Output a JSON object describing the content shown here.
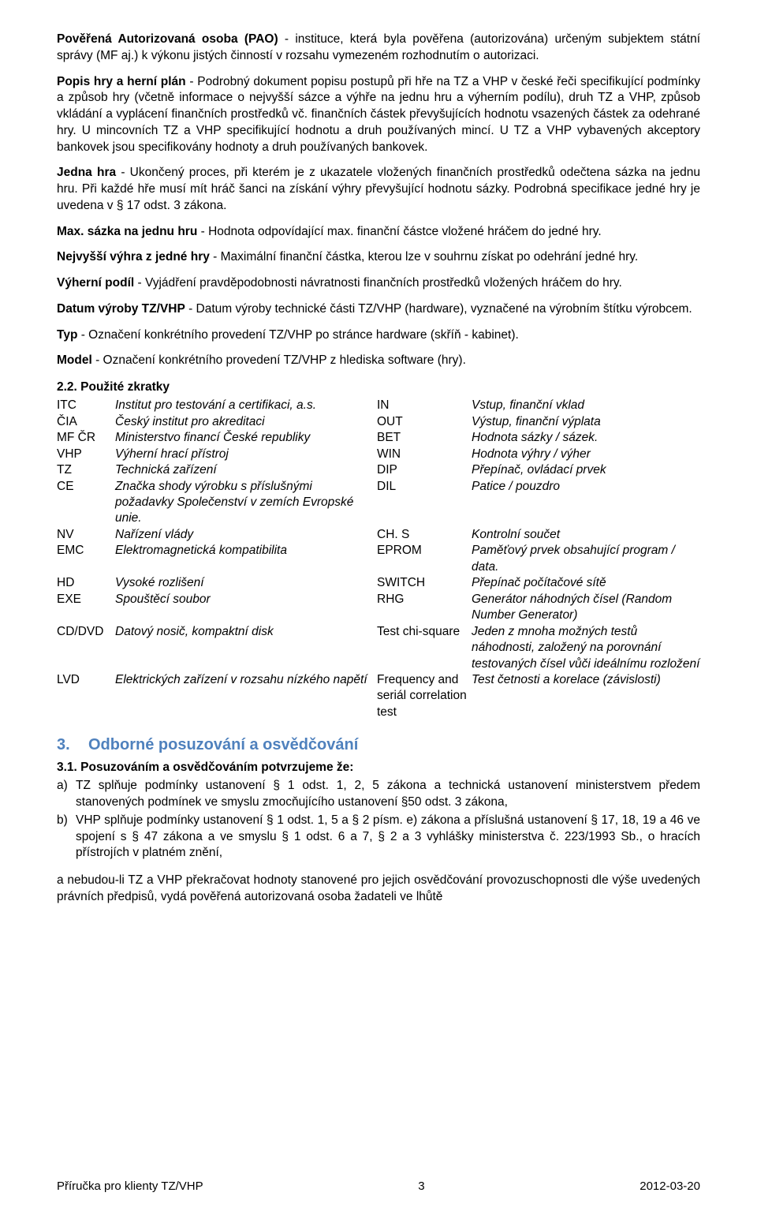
{
  "p1_term": "Pověřená Autorizovaná osoba (PAO)",
  "p1_rest": " -  instituce, která byla pověřena (autorizována) určeným subjektem státní správy (MF aj.) k výkonu jistých činností v rozsahu vymezeném rozhodnutím o autorizaci.",
  "p2_term": "Popis hry a herní plán",
  "p2_rest": " - Podrobný dokument popisu postupů při hře na TZ a VHP v české řeči specifikující podmínky a způsob hry (včetně informace o nejvyšší sázce a výhře na jednu hru a výherním podílu), druh TZ a VHP, způsob vkládání a vyplácení finančních prostředků vč. finančních částek převyšujících hodnotu vsazených částek za odehrané hry. U mincovních TZ a VHP specifikující hodnotu a druh používaných mincí. U TZ a VHP vybavených akceptory bankovek jsou specifikovány hodnoty a druh používaných bankovek.",
  "p3_term": "Jedna hra",
  "p3_rest": " - Ukončený proces, při kterém je z ukazatele vložených finančních prostředků odečtena sázka na jednu hru. Při každé hře musí mít hráč šanci na získání výhry převyšující hodnotu sázky. Podrobná specifikace jedné hry je uvedena v § 17 odst. 3 zákona.",
  "p4_term": "Max. sázka na jednu hru",
  "p4_rest": " - Hodnota odpovídající max. finanční částce vložené hráčem do jedné hry.",
  "p5_term": "Nejvyšší výhra z jedné hry",
  "p5_rest": " - Maximální finanční částka, kterou lze v souhrnu získat po odehrání jedné hry.",
  "p6_term": "Výherní podíl",
  "p6_rest": " - Vyjádření pravděpodobnosti návratnosti finančních prostředků vložených hráčem do hry.",
  "p7_term": "Datum výroby TZ/VHP",
  "p7_rest": " - Datum výroby technické části TZ/VHP (hardware), vyznačené na výrobním štítku výrobcem.",
  "p8_term": "Typ",
  "p8_rest": " - Označení konkrétního provedení TZ/VHP po stránce hardware (skříň - kabinet).",
  "p9_term": "Model",
  "p9_rest": " - Označení konkrétního provedení TZ/VHP z hlediska software (hry).",
  "abbrev_heading": "2.2.   Použité zkratky",
  "rows": [
    {
      "a": "ITC",
      "b": "Institut pro testování a certifikaci, a.s.",
      "c": "IN",
      "d": "Vstup, finanční vklad"
    },
    {
      "a": "ČIA",
      "b": "Český institut pro akreditaci",
      "c": "OUT",
      "d": "Výstup, finanční výplata"
    },
    {
      "a": "MF ČR",
      "b": "Ministerstvo financí České republiky",
      "c": "BET",
      "d": "Hodnota sázky / sázek."
    },
    {
      "a": "VHP",
      "b": "Výherní hrací přístroj",
      "c": "WIN",
      "d": "Hodnota výhry / výher"
    },
    {
      "a": "TZ",
      "b": "Technická zařízení",
      "c": "DIP",
      "d": "Přepínač, ovládací prvek"
    },
    {
      "a": "CE",
      "b": "Značka shody výrobku s příslušnými požadavky Společenství v zemích Evropské unie.",
      "c": "DIL",
      "d": "Patice / pouzdro"
    },
    {
      "a": "NV",
      "b": "Nařízení vlády",
      "c": "CH. S",
      "d": "Kontrolní součet"
    },
    {
      "a": "EMC",
      "b": "Elektromagnetická kompatibilita",
      "c": "EPROM",
      "d": "Paměťový prvek obsahující program / data."
    },
    {
      "a": "HD",
      "b": "Vysoké rozlišení",
      "c": "SWITCH",
      "d": "Přepínač počítačové sítě"
    },
    {
      "a": "EXE",
      "b": "Spouštěcí soubor",
      "c": "RHG",
      "d": "Generátor náhodných čísel (Random Number Generator)"
    },
    {
      "a": "CD/DVD",
      "b": "Datový nosič, kompaktní disk",
      "c": "Test chi-square",
      "d": "Jeden z mnoha možných testů náhodnosti, založený na porovnání testovaných čísel vůči ideálnímu rozložení"
    },
    {
      "a": "LVD",
      "b": "Elektrických zařízení v rozsahu nízkého napětí",
      "c": "Frequency and seriál correlation test",
      "d": "Test četnosti a korelace (závislosti)"
    }
  ],
  "h3_num": "3.",
  "h3_title": "Odborné posuzování a osvědčování",
  "s31_heading": "3.1. Posuzováním a osvědčováním potvrzujeme že:",
  "s31_a_label": "a)",
  "s31_a": "TZ splňuje podmínky ustanovení § 1 odst. 1, 2, 5 zákona a technická ustanovení ministerstvem předem stanovených podmínek ve smyslu zmocňujícího ustanovení §50 odst. 3 zákona,",
  "s31_b_label": "b)",
  "s31_b": "VHP splňuje podmínky ustanovení § 1 odst. 1, 5 a § 2 písm. e) zákona a příslušná ustanovení § 17, 18, 19 a 46 ve spojení s § 47 zákona a ve smyslu § 1 odst. 6 a 7, § 2 a 3 vyhlášky ministerstva č. 223/1993 Sb., o hracích přístrojích v platném znění,",
  "s31_tail": "a nebudou-li TZ a VHP překračovat hodnoty stanovené pro jejich osvědčování provozuschopnosti dle výše uvedených právních předpisů, vydá pověřená autorizovaná osoba žadateli ve lhůtě",
  "footer_left": "Příručka pro klienty TZ/VHP",
  "footer_center": "3",
  "footer_right": "2012-03-20"
}
